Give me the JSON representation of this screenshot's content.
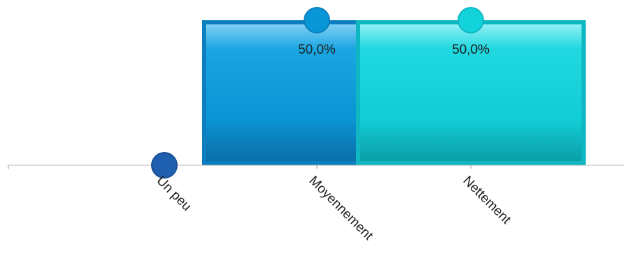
{
  "chart_data": {
    "type": "bar",
    "categories": [
      "Un peu",
      "Moyennement",
      "Nettement"
    ],
    "series": [
      {
        "values": [
          0,
          50.0,
          50.0
        ]
      }
    ],
    "data_labels": [
      "",
      "50,0%",
      "50,0%"
    ],
    "colors": {
      "Un peu": "#1f5fb0",
      "Moyennement": "#0996d6",
      "Nettement": "#12d2da"
    },
    "ylim": [
      0,
      50
    ],
    "grid": false,
    "legend": "none",
    "title": "",
    "xlabel": "",
    "ylabel": ""
  }
}
